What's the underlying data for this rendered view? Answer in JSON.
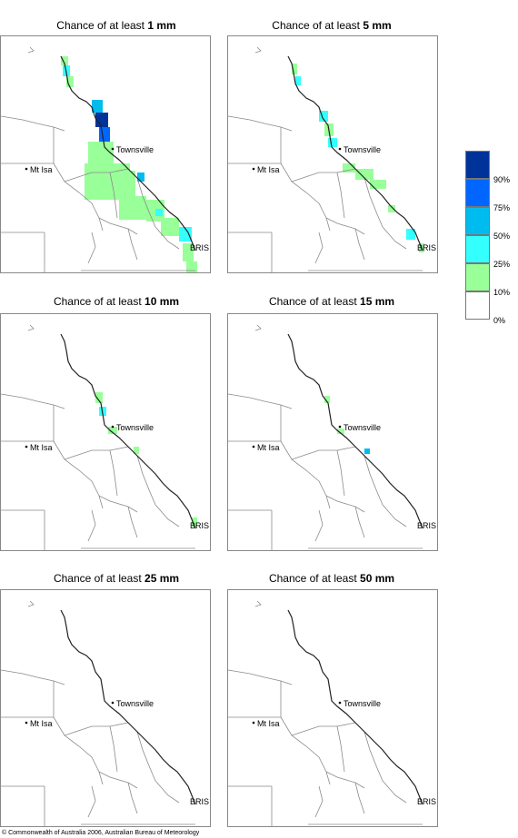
{
  "panels": [
    {
      "title_prefix": "Chance of at least",
      "amount": "1 mm",
      "heavy": true
    },
    {
      "title_prefix": "Chance of at least",
      "amount": "5 mm",
      "heavy": false,
      "medium": true
    },
    {
      "title_prefix": "Chance of at least",
      "amount": "10 mm",
      "light": true
    },
    {
      "title_prefix": "Chance of at least",
      "amount": "15 mm",
      "faint": true
    },
    {
      "title_prefix": "Chance of at least",
      "amount": "25 mm"
    },
    {
      "title_prefix": "Chance of at least",
      "amount": "50 mm"
    }
  ],
  "places": {
    "townsville": "Townsville",
    "mt_isa": "Mt Isa",
    "bris": "BRIS"
  },
  "legend": {
    "bins": [
      {
        "label": "90%",
        "color": "#00339a"
      },
      {
        "label": "75%",
        "color": "#0066ff"
      },
      {
        "label": "50%",
        "color": "#00bbee"
      },
      {
        "label": "25%",
        "color": "#33ffff"
      },
      {
        "label": "10%",
        "color": "#99ff99"
      },
      {
        "label": "0%",
        "color": "#ffffff"
      }
    ]
  },
  "copyright": "© Commonwealth of Australia 2006, Australian Bureau of Meteorology"
}
